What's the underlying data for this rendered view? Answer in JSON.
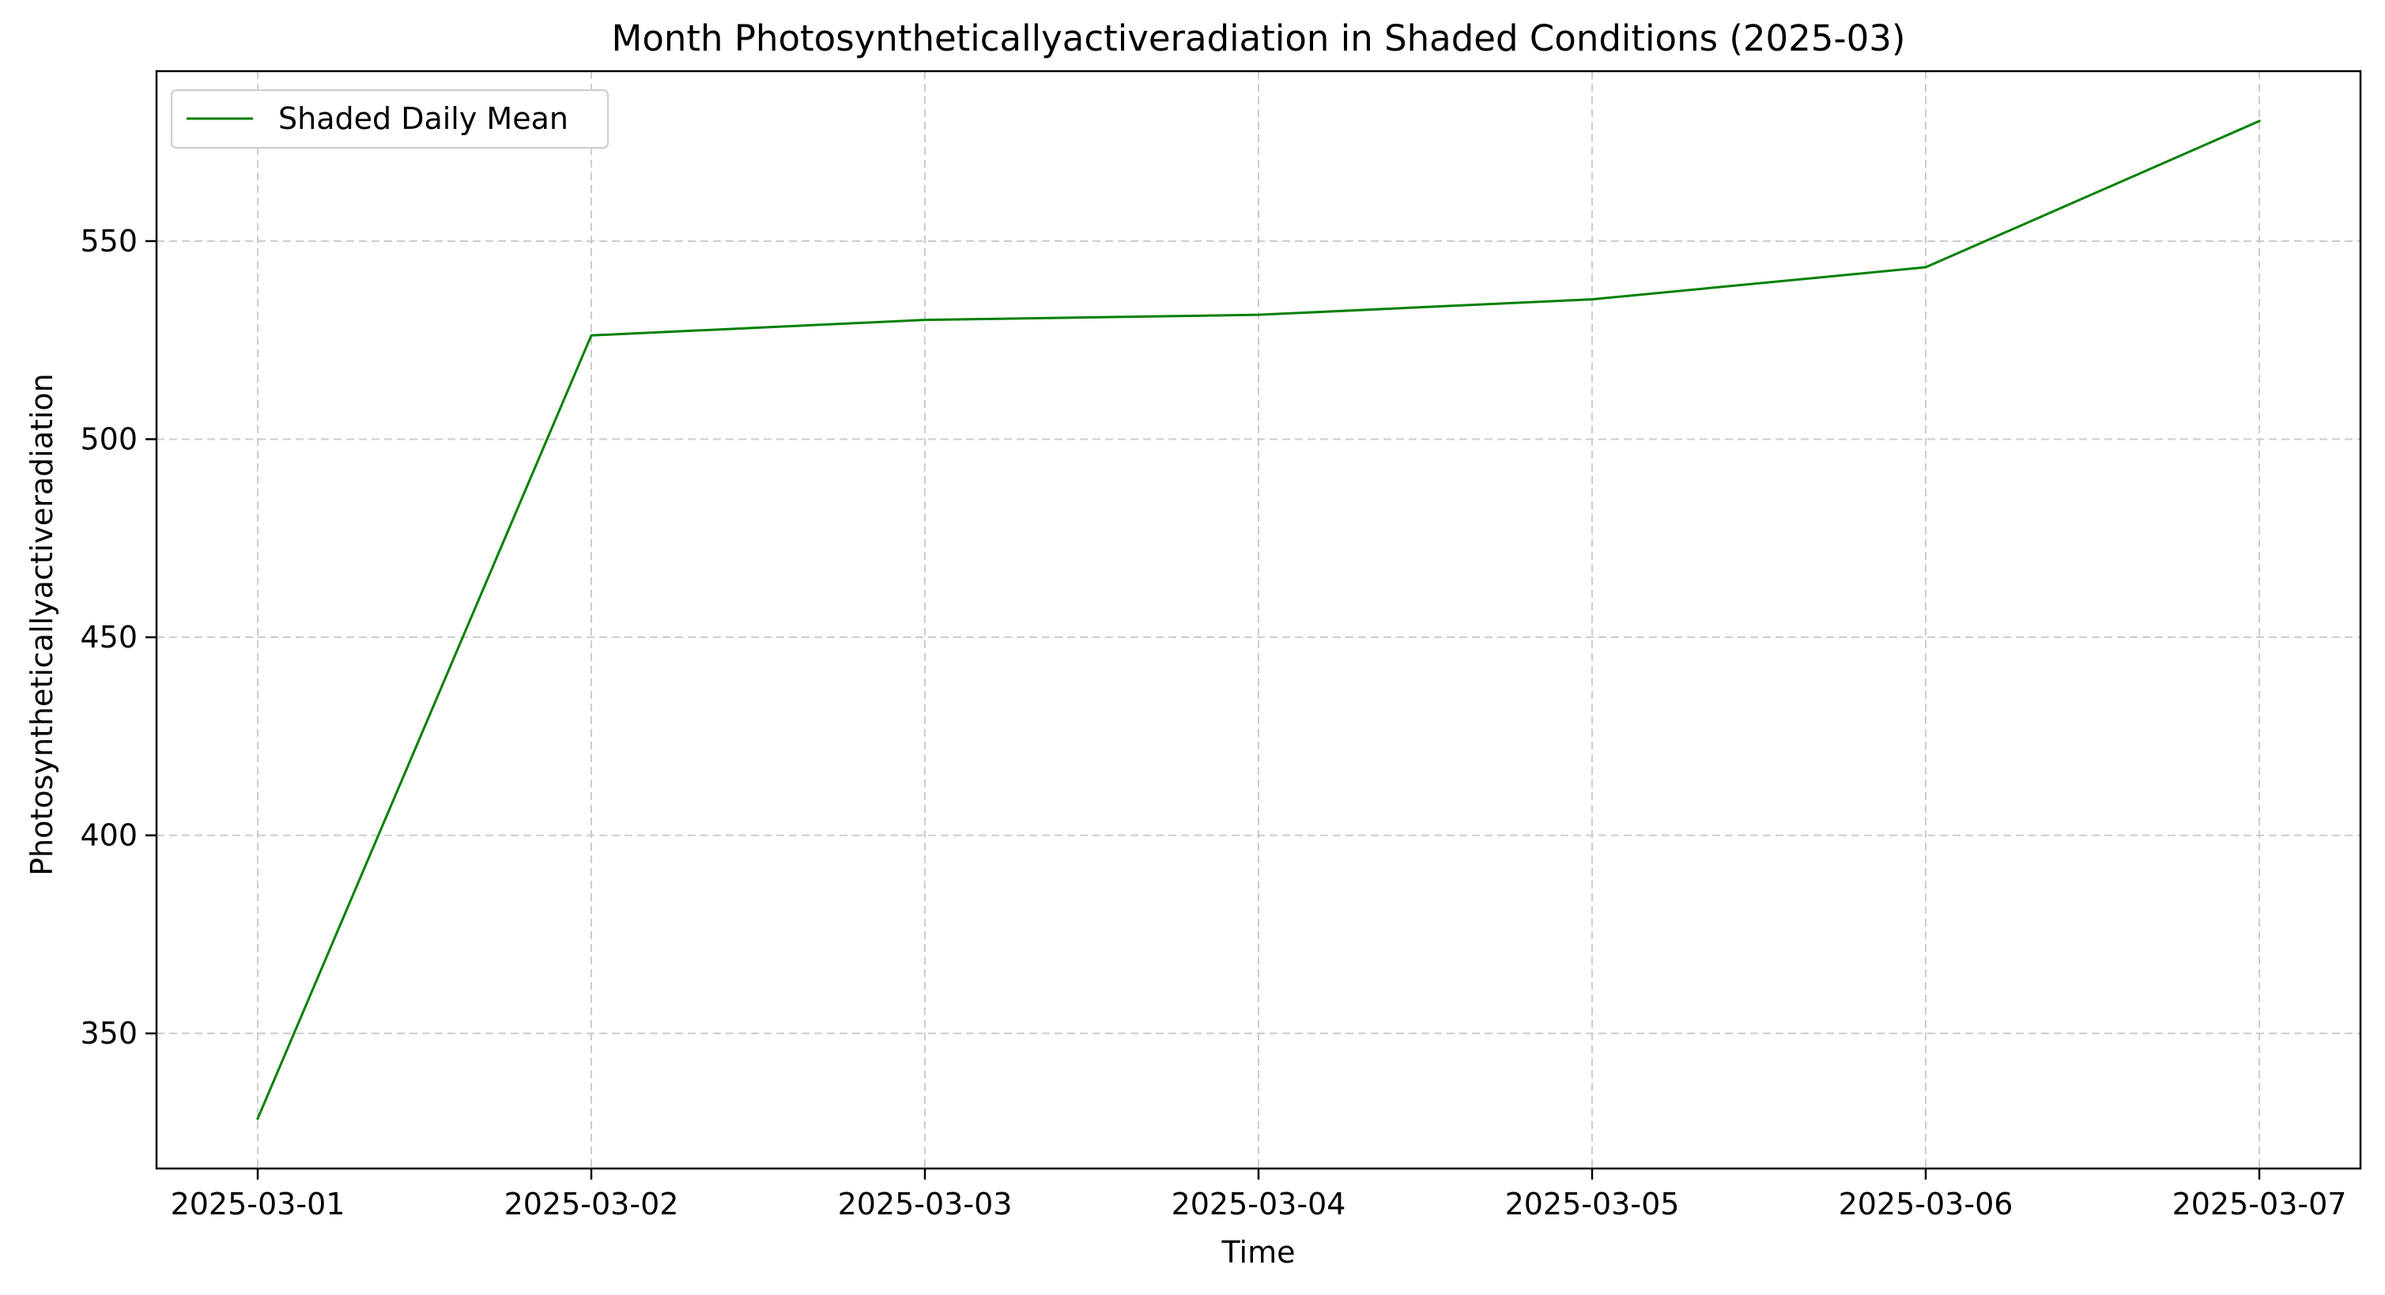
{
  "chart_data": {
    "type": "line",
    "title": "Month Photosyntheticallyactiveradiation in Shaded Conditions (2025-03)",
    "xlabel": "Time",
    "ylabel": "Photosyntheticallyactiveradiation",
    "x": [
      "2025-03-01",
      "2025-03-02",
      "2025-03-03",
      "2025-03-04",
      "2025-03-05",
      "2025-03-06",
      "2025-03-07"
    ],
    "series": [
      {
        "name": "Shaded Daily Mean",
        "color": "#008000",
        "values": [
          328.5,
          526.2,
          530.1,
          531.4,
          535.3,
          543.4,
          580.3
        ]
      }
    ],
    "yticks": [
      350,
      400,
      450,
      500,
      550
    ],
    "ylim": [
      315.9,
      592.9
    ],
    "grid": true,
    "grid_style": "dashed",
    "legend_position": "upper-left"
  }
}
